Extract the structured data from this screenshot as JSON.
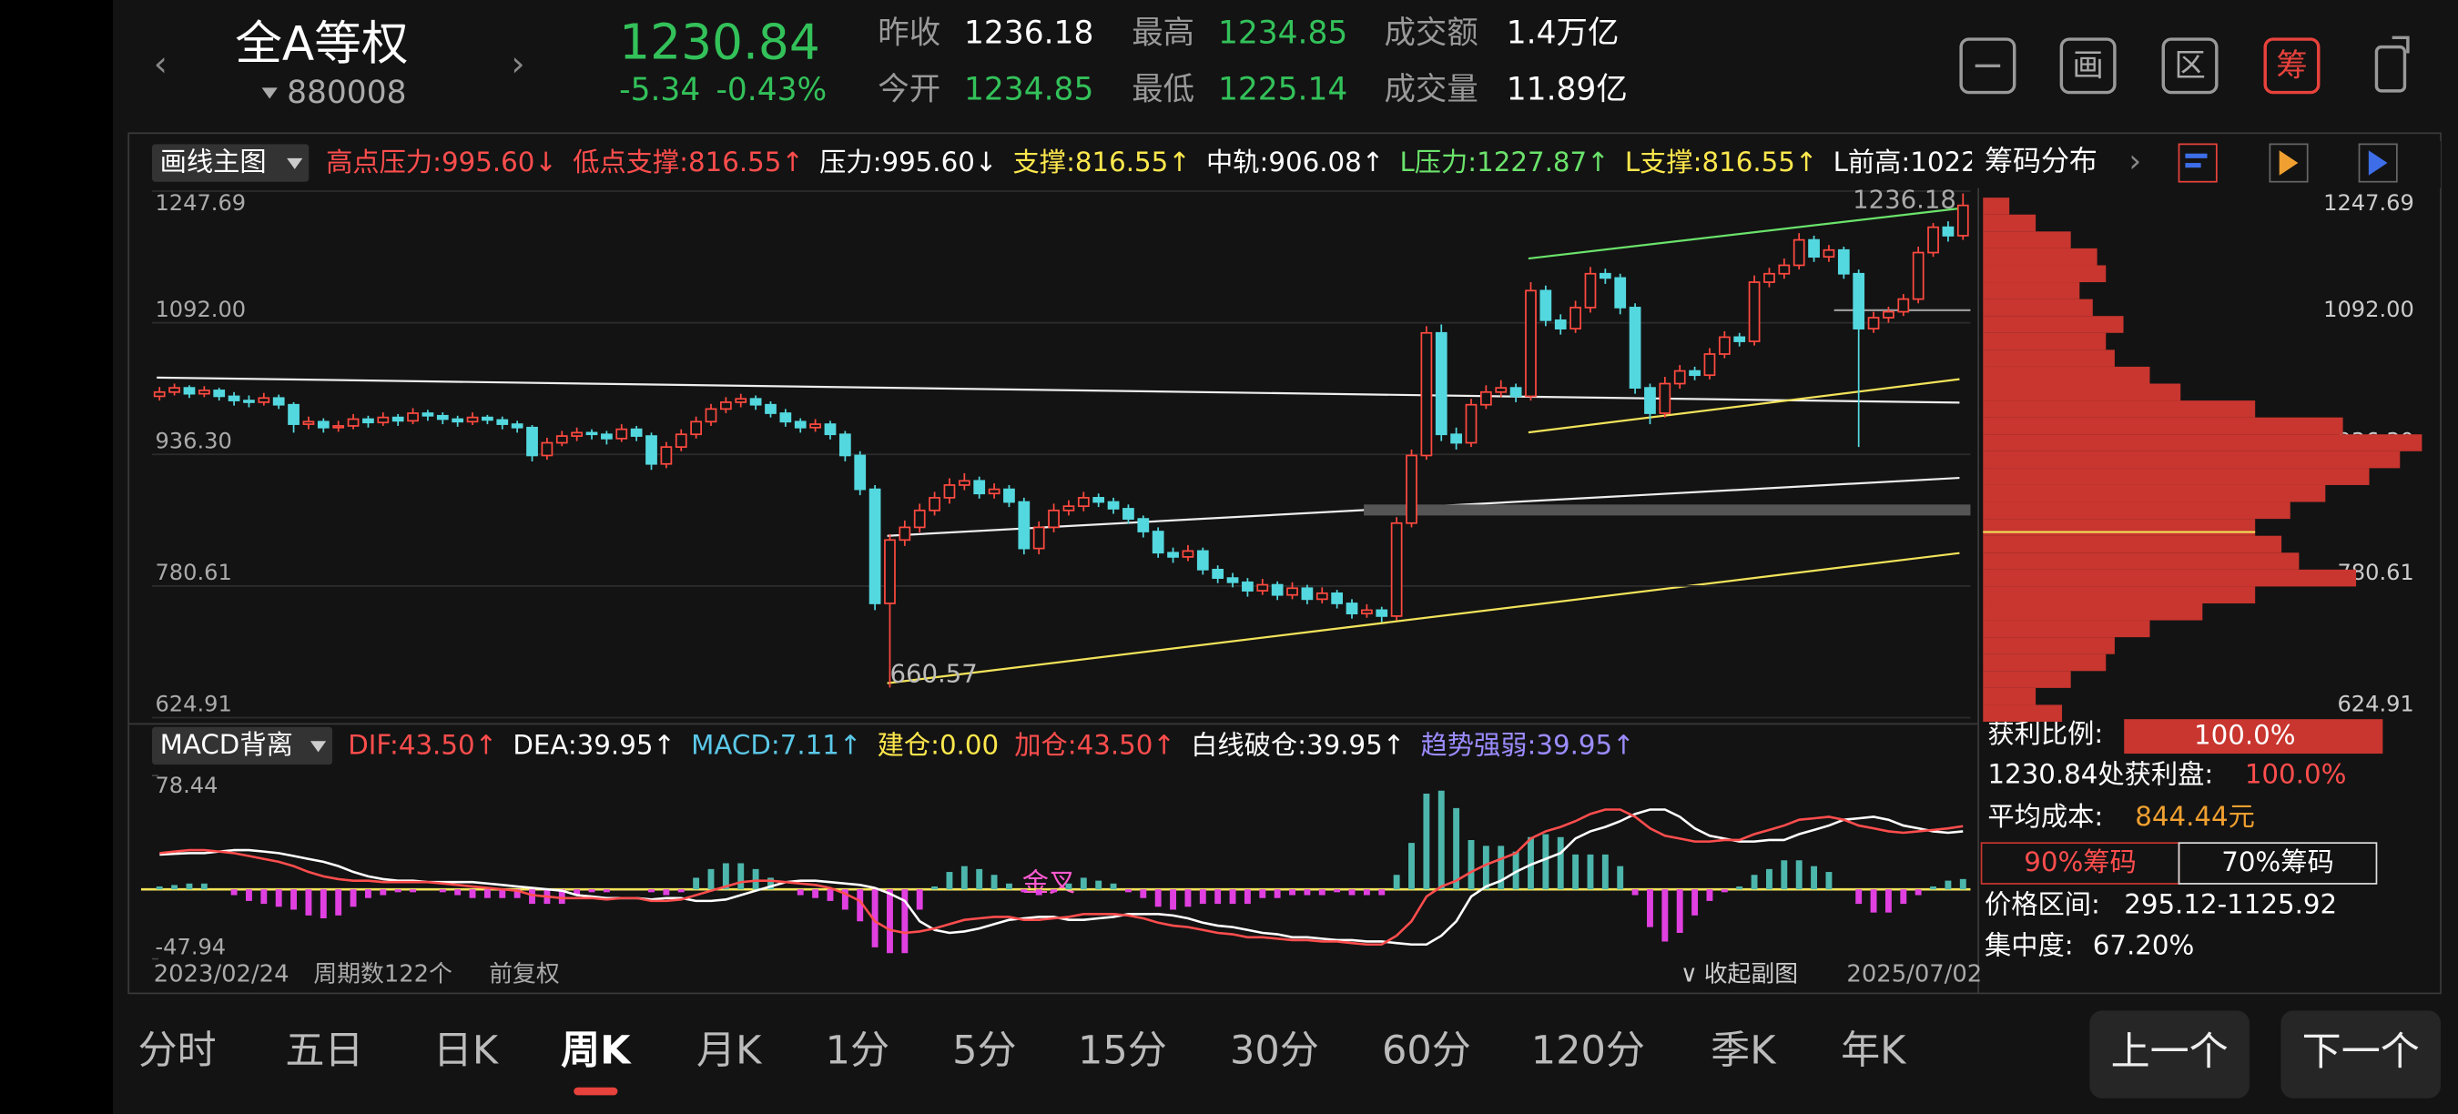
{
  "header": {
    "name": "全A等权",
    "code": "880008",
    "price": 1230.84,
    "change": -5.34,
    "change_pct": "-0.43%",
    "stats": [
      {
        "label": "昨收",
        "value": 1236.18,
        "color": "#ffffff"
      },
      {
        "label": "今开",
        "value": 1234.85,
        "color": "#33c15a"
      },
      {
        "label": "最高",
        "value": 1234.85,
        "color": "#33c15a"
      },
      {
        "label": "最低",
        "value": 1225.14,
        "color": "#33c15a"
      },
      {
        "label": "成交额",
        "value": "1.4万亿",
        "color": "#ffffff"
      },
      {
        "label": "成交量",
        "value": "11.89亿",
        "color": "#ffffff"
      }
    ],
    "icons": [
      "画",
      "区",
      "筹"
    ]
  },
  "main_indicator": {
    "button": "画线主图",
    "items": [
      {
        "text": "高点压力:995.60↓",
        "color": "#ff4d4d"
      },
      {
        "text": "低点支撑:816.55↑",
        "color": "#ff4d4d"
      },
      {
        "text": "压力:995.60↓",
        "color": "#ffffff"
      },
      {
        "text": "支撑:816.55↑",
        "color": "#ffe84d"
      },
      {
        "text": "中轨:906.08↑",
        "color": "#ffffff"
      },
      {
        "text": "L压力:1227.87↑",
        "color": "#6be36b"
      },
      {
        "text": "L支撑:816.55↑",
        "color": "#ffe84d"
      },
      {
        "text": "L前高:1022",
        "color": "#ffffff"
      }
    ],
    "right_title": "筹码分布"
  },
  "chart_data": [
    {
      "type": "candlestick",
      "up_color": "#ff4a40",
      "down_color": "#54d8df",
      "ylim": [
        624.91,
        1247.69
      ],
      "yticks": [
        1247.69,
        {
          "value": 1092,
          "label": "1092.00"
        },
        {
          "value": 936.3,
          "label": "936.30"
        },
        780.61,
        624.91
      ],
      "grid": true,
      "annotations": [
        1236.18
      ],
      "candles": [
        [
          1005,
          1016,
          1000,
          1010
        ],
        [
          1010,
          1020,
          1006,
          1015
        ],
        [
          1015,
          1018,
          1003,
          1008
        ],
        [
          1008,
          1017,
          1004,
          1012
        ],
        [
          1012,
          1015,
          1000,
          1005
        ],
        [
          1005,
          1010,
          994,
          1000
        ],
        [
          1000,
          1006,
          992,
          998
        ],
        [
          998,
          1009,
          994,
          1003
        ],
        [
          1003,
          1007,
          990,
          995
        ],
        [
          995,
          998,
          962,
          972
        ],
        [
          972,
          981,
          966,
          975
        ],
        [
          975,
          979,
          962,
          968
        ],
        [
          968,
          976,
          963,
          970
        ],
        [
          970,
          984,
          966,
          978
        ],
        [
          978,
          982,
          968,
          974
        ],
        [
          974,
          986,
          970,
          980
        ],
        [
          980,
          984,
          970,
          976
        ],
        [
          976,
          991,
          972,
          985
        ],
        [
          985,
          989,
          976,
          982
        ],
        [
          982,
          986,
          972,
          978
        ],
        [
          978,
          982,
          969,
          975
        ],
        [
          975,
          986,
          971,
          980
        ],
        [
          980,
          983,
          972,
          977
        ],
        [
          977,
          981,
          966,
          972
        ],
        [
          972,
          976,
          962,
          968
        ],
        [
          968,
          971,
          928,
          935
        ],
        [
          935,
          956,
          930,
          950
        ],
        [
          950,
          964,
          946,
          958
        ],
        [
          958,
          968,
          952,
          962
        ],
        [
          962,
          966,
          954,
          960
        ],
        [
          960,
          964,
          948,
          955
        ],
        [
          955,
          972,
          951,
          966
        ],
        [
          966,
          970,
          952,
          958
        ],
        [
          958,
          962,
          918,
          925
        ],
        [
          925,
          951,
          920,
          945
        ],
        [
          945,
          966,
          940,
          960
        ],
        [
          960,
          981,
          955,
          975
        ],
        [
          975,
          996,
          970,
          990
        ],
        [
          990,
          1004,
          985,
          998
        ],
        [
          998,
          1008,
          992,
          1002
        ],
        [
          1002,
          1006,
          989,
          995
        ],
        [
          995,
          999,
          980,
          985
        ],
        [
          985,
          990,
          969,
          975
        ],
        [
          975,
          979,
          962,
          968
        ],
        [
          968,
          978,
          963,
          972
        ],
        [
          972,
          976,
          954,
          960
        ],
        [
          960,
          964,
          928,
          935
        ],
        [
          935,
          940,
          888,
          895
        ],
        [
          895,
          900,
          752,
          760
        ],
        [
          760,
          842,
          660.57,
          835
        ],
        [
          835,
          858,
          828,
          850
        ],
        [
          850,
          878,
          844,
          870
        ],
        [
          870,
          892,
          864,
          885
        ],
        [
          885,
          908,
          878,
          900
        ],
        [
          900,
          914,
          894,
          905
        ],
        [
          905,
          910,
          884,
          890
        ],
        [
          890,
          902,
          884,
          895
        ],
        [
          895,
          900,
          874,
          880
        ],
        [
          880,
          885,
          818,
          825
        ],
        [
          825,
          857,
          818,
          850
        ],
        [
          850,
          878,
          844,
          870
        ],
        [
          870,
          882,
          864,
          875
        ],
        [
          875,
          892,
          869,
          885
        ],
        [
          885,
          890,
          874,
          880
        ],
        [
          880,
          885,
          866,
          872
        ],
        [
          872,
          877,
          854,
          860
        ],
        [
          860,
          864,
          838,
          845
        ],
        [
          845,
          850,
          814,
          820
        ],
        [
          820,
          826,
          808,
          815
        ],
        [
          815,
          829,
          810,
          822
        ],
        [
          822,
          826,
          794,
          800
        ],
        [
          800,
          805,
          784,
          790
        ],
        [
          790,
          796,
          779,
          785
        ],
        [
          785,
          790,
          768,
          775
        ],
        [
          775,
          789,
          770,
          782
        ],
        [
          782,
          786,
          764,
          770
        ],
        [
          770,
          785,
          765,
          778
        ],
        [
          778,
          782,
          759,
          765
        ],
        [
          765,
          779,
          760,
          772
        ],
        [
          772,
          776,
          754,
          760
        ],
        [
          760,
          765,
          742,
          748
        ],
        [
          748,
          759,
          743,
          752
        ],
        [
          752,
          756,
          738,
          745
        ],
        [
          745,
          862,
          740,
          855
        ],
        [
          855,
          942,
          850,
          935
        ],
        [
          935,
          1088,
          930,
          1080
        ],
        [
          1080,
          1090,
          952,
          960
        ],
        [
          960,
          968,
          942,
          950
        ],
        [
          950,
          1002,
          945,
          995
        ],
        [
          995,
          1018,
          990,
          1010
        ],
        [
          1010,
          1024,
          1004,
          1015
        ],
        [
          1015,
          1020,
          998,
          1005
        ],
        [
          1005,
          1140,
          1000,
          1130
        ],
        [
          1130,
          1136,
          1088,
          1095
        ],
        [
          1095,
          1102,
          1078,
          1085
        ],
        [
          1085,
          1118,
          1080,
          1110
        ],
        [
          1110,
          1158,
          1104,
          1150
        ],
        [
          1150,
          1156,
          1138,
          1145
        ],
        [
          1145,
          1150,
          1102,
          1110
        ],
        [
          1110,
          1115,
          1008,
          1015
        ],
        [
          1015,
          1020,
          972,
          985
        ],
        [
          985,
          1028,
          980,
          1020
        ],
        [
          1020,
          1042,
          1014,
          1035
        ],
        [
          1035,
          1040,
          1024,
          1030
        ],
        [
          1030,
          1062,
          1025,
          1055
        ],
        [
          1055,
          1082,
          1050,
          1075
        ],
        [
          1075,
          1080,
          1064,
          1070
        ],
        [
          1070,
          1148,
          1065,
          1140
        ],
        [
          1140,
          1157,
          1134,
          1150
        ],
        [
          1150,
          1168,
          1144,
          1160
        ],
        [
          1160,
          1198,
          1155,
          1190
        ],
        [
          1190,
          1195,
          1164,
          1170
        ],
        [
          1170,
          1184,
          1164,
          1178
        ],
        [
          1178,
          1182,
          1144,
          1150
        ],
        [
          1150,
          1155,
          945,
          1085
        ],
        [
          1085,
          1105,
          1080,
          1098
        ],
        [
          1098,
          1111,
          1092,
          1105
        ],
        [
          1105,
          1126,
          1100,
          1120
        ],
        [
          1120,
          1182,
          1115,
          1175
        ],
        [
          1175,
          1210,
          1170,
          1205
        ],
        [
          1205,
          1212,
          1188,
          1195
        ],
        [
          1195,
          1245,
          1190,
          1230.84
        ]
      ],
      "x_start": "2023/02/24",
      "period_count": "周期数122个",
      "adjust": "前复权",
      "collapse": "收起副图",
      "x_end": "2025/07/02"
    },
    {
      "type": "chip_distribution",
      "color": "#c8362f",
      "ylim": [
        624.91,
        1247.69
      ],
      "prices": [
        630,
        650,
        670,
        690,
        710,
        730,
        750,
        770,
        790,
        810,
        830,
        850,
        870,
        890,
        910,
        930,
        950,
        970,
        990,
        1010,
        1030,
        1050,
        1070,
        1090,
        1110,
        1130,
        1150,
        1170,
        1190,
        1210,
        1230
      ],
      "values": [
        18,
        12,
        20,
        28,
        30,
        38,
        50,
        62,
        85,
        72,
        68,
        62,
        70,
        78,
        88,
        95,
        100,
        82,
        62,
        45,
        38,
        30,
        28,
        32,
        25,
        22,
        28,
        26,
        20,
        12,
        6
      ]
    },
    {
      "type": "macd",
      "button": "MACD背离",
      "ylim": [
        -47.94,
        78.44
      ],
      "yticks": [
        78.44,
        -47.94
      ],
      "annotation": "金叉",
      "items": [
        {
          "text": "DIF:43.50↑",
          "color": "#ff4d4d"
        },
        {
          "text": "DEA:39.95↑",
          "color": "#ffffff"
        },
        {
          "text": "MACD:7.11↑",
          "color": "#5bc8e8"
        },
        {
          "text": "建仓:0.00",
          "color": "#ffe84d"
        },
        {
          "text": "加仓:43.50↑",
          "color": "#ff4d4d"
        },
        {
          "text": "白线破仓:39.95↑",
          "color": "#ffffff"
        },
        {
          "text": "趋势强弱:39.95↑",
          "color": "#9a8cff"
        }
      ],
      "dif": [
        25,
        26,
        27,
        27,
        26,
        25,
        23,
        21,
        19,
        16,
        12,
        9,
        7,
        6,
        6,
        5,
        5,
        5,
        5,
        4,
        3,
        2,
        1,
        0,
        -1,
        -4,
        -5,
        -6,
        -6,
        -6,
        -7,
        -6,
        -6,
        -8,
        -8,
        -7,
        -4,
        -1,
        2,
        5,
        6,
        6,
        5,
        4,
        3,
        1,
        -3,
        -8,
        -22,
        -28,
        -30,
        -29,
        -27,
        -24,
        -21,
        -20,
        -19,
        -19,
        -21,
        -21,
        -20,
        -19,
        -17,
        -17,
        -17,
        -18,
        -20,
        -23,
        -25,
        -26,
        -28,
        -30,
        -31,
        -33,
        -33,
        -34,
        -35,
        -35,
        -36,
        -36,
        -37,
        -38,
        -38,
        -32,
        -22,
        -5,
        2,
        6,
        12,
        17,
        21,
        25,
        35,
        40,
        43,
        47,
        52,
        55,
        55,
        50,
        42,
        37,
        35,
        33,
        33,
        34,
        34,
        38,
        41,
        44,
        48,
        49,
        50,
        48,
        44,
        42,
        40,
        39,
        40,
        41,
        42,
        43.5
      ],
      "dea": [
        24,
        24.5,
        25,
        25,
        26,
        27,
        27,
        26,
        25,
        23,
        21,
        19,
        16,
        12,
        9,
        7,
        6,
        6,
        5,
        5,
        5,
        5,
        4,
        3,
        2,
        1,
        0,
        -1,
        -4,
        -5,
        -6,
        -6,
        -6,
        -7,
        -6,
        -6,
        -8,
        -8,
        -7,
        -4,
        -1,
        2,
        5,
        6,
        6,
        5,
        4,
        3,
        1,
        -3,
        -8,
        -22,
        -28,
        -30,
        -29,
        -27,
        -24,
        -21,
        -20,
        -19,
        -19,
        -21,
        -21,
        -20,
        -19,
        -17,
        -17,
        -17,
        -18,
        -20,
        -23,
        -25,
        -26,
        -28,
        -30,
        -31,
        -33,
        -33,
        -34,
        -35,
        -35,
        -36,
        -36,
        -37,
        -38,
        -38,
        -32,
        -22,
        -5,
        2,
        6,
        12,
        17,
        21,
        25,
        35,
        40,
        43,
        47,
        52,
        55,
        55,
        50,
        42,
        37,
        35,
        33,
        33,
        34,
        34,
        38,
        41,
        44,
        48,
        49,
        50,
        48,
        44,
        42,
        40,
        39,
        39.95
      ],
      "macd": [
        2,
        3,
        4,
        4,
        0,
        -4,
        -8,
        -10,
        -12,
        -14,
        -18,
        -20,
        -18,
        -12,
        -6,
        -4,
        -2,
        -2,
        0,
        -2,
        -4,
        -6,
        -6,
        -6,
        -6,
        -10,
        -10,
        -10,
        -4,
        -2,
        -2,
        0,
        0,
        -2,
        -4,
        -2,
        8,
        14,
        18,
        18,
        14,
        8,
        0,
        -4,
        -6,
        -8,
        -14,
        -22,
        -40,
        -44,
        -44,
        -14,
        2,
        12,
        16,
        14,
        10,
        4,
        -2,
        -4,
        -2,
        4,
        8,
        6,
        4,
        -2,
        -6,
        -12,
        -14,
        -12,
        -10,
        -10,
        -10,
        -10,
        -6,
        -6,
        -4,
        -4,
        -4,
        -2,
        -4,
        -4,
        -4,
        10,
        32,
        66,
        68,
        56,
        34,
        30,
        30,
        26,
        36,
        38,
        36,
        24,
        24,
        24,
        16,
        -4,
        -26,
        -36,
        -30,
        -18,
        -8,
        -2,
        2,
        10,
        14,
        20,
        20,
        16,
        12,
        0,
        -10,
        -16,
        -16,
        -10,
        -4,
        2,
        6,
        7.11
      ]
    }
  ],
  "chip_summary": {
    "profit_ratio_label": "获利比例:",
    "profit_ratio": "100.0%",
    "profit_at_label": "1230.84处获利盘:",
    "profit_at": "100.0%",
    "avg_cost_label": "平均成本:",
    "avg_cost": "844.44元",
    "btn90": "90%筹码",
    "btn70": "70%筹码",
    "range_label": "价格区间:",
    "range": "295.12-1125.92",
    "concentration_label": "集中度:",
    "concentration": "67.20%"
  },
  "tabs": [
    "分时",
    "五日",
    "日K",
    "周K",
    "月K",
    "1分",
    "5分",
    "15分",
    "30分",
    "60分",
    "120分",
    "季K",
    "年K"
  ],
  "selected_tab": 3,
  "nav": [
    "上一个",
    "下一个"
  ]
}
